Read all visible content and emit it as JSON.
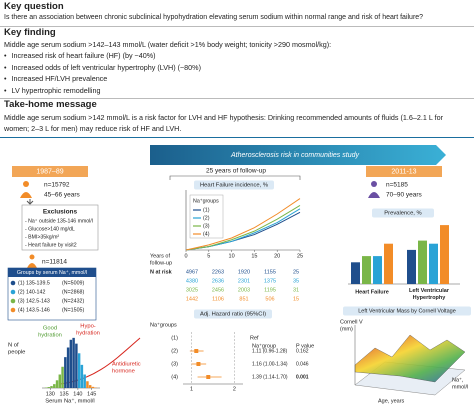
{
  "key_question": {
    "heading": "Key question",
    "text": "Is there an association between chronic subclinical hypohydration elevating serum sodium within normal range and risk of heart failure?"
  },
  "key_finding": {
    "heading": "Key finding",
    "intro": "Middle age serum sodium >142–143 mmol/L (water deficit >1% body weight; tonicity >290 mosmol/kg):",
    "bullets": [
      "Increased risk of heart failure (HF) (by ~40%)",
      "Increased odds of left ventricular hypertrophy (LVH) (~80%)",
      "Increased HF/LVH prevalence",
      "LV hypertrophic remodelling"
    ]
  },
  "take_home": {
    "heading": "Take-home message",
    "text": "Middle age serum sodium >142 mmol/L is a risk factor for LVH and HF hypothesis: Drinking recommended amounts of fluids (1.6–2.1 L for women; 2–3 L for men) may reduce risk of HF and LVH."
  },
  "banner": "Atherosclerosis risk in communities study",
  "baseline": {
    "period": "1987–89",
    "n": "n=15792",
    "age": "45–66 years",
    "exclusions_title": "Exclusions",
    "exclusions": [
      "- Na⁺ outside 135-146 mmol/l",
      "- Glucose>140 mg/dL",
      "- BMI>35kg/m²",
      "- Heart failure by visit2"
    ],
    "n_final": "n=11814"
  },
  "groups": {
    "title": "Groups by serum Na⁺, mmol/l",
    "rows": [
      {
        "label": "(1) 135-139.5",
        "n": "(N=5009)",
        "color": "#1f4e8c"
      },
      {
        "label": "(2) 140-142",
        "n": "(N=2868)",
        "color": "#29a3d6"
      },
      {
        "label": "(3) 142.5-143",
        "n": "(N=2432)",
        "color": "#7ab648"
      },
      {
        "label": "(4) 143.5-146",
        "n": "(N=1505)",
        "color": "#f28c28"
      }
    ]
  },
  "histogram": {
    "type": "histogram",
    "y_label": [
      "N of",
      "people"
    ],
    "x_label": "Serum Na⁺, mmol/l",
    "bins": [
      128,
      129,
      130,
      131,
      132,
      133,
      134,
      135,
      136,
      137,
      138,
      139,
      140,
      141,
      142,
      143,
      144,
      145,
      146,
      147
    ],
    "counts": [
      2,
      5,
      10,
      20,
      40,
      70,
      110,
      160,
      210,
      250,
      260,
      230,
      180,
      120,
      70,
      35,
      15,
      6,
      2
    ],
    "colors": [
      "#7ab648",
      "#7ab648",
      "#7ab648",
      "#7ab648",
      "#7ab648",
      "#7ab648",
      "#7ab648",
      "#1f4e8c",
      "#1f4e8c",
      "#1f4e8c",
      "#1f4e8c",
      "#1f4e8c",
      "#29a3d6",
      "#29a3d6",
      "#29a3d6",
      "#f28c28",
      "#f28c28",
      "#f28c28",
      "#f28c28"
    ],
    "xlim": [
      127,
      148
    ],
    "xticks": [
      130,
      135,
      140,
      145
    ],
    "ylim": [
      0,
      280
    ],
    "annotations": {
      "good": [
        "Good",
        "hydration"
      ],
      "hypo": [
        "Hypo-",
        "hydration"
      ],
      "adh": [
        "Antidiuretic",
        "hormone"
      ]
    }
  },
  "followup": "25 years of follow-up",
  "incidence": {
    "type": "line",
    "title": "Heart Failure incidence, %",
    "legend_title": "Na⁺groups",
    "x_label": [
      "Years of",
      "follow-up"
    ],
    "x": [
      0,
      5,
      10,
      15,
      20,
      25
    ],
    "xlim": [
      0,
      25
    ],
    "xticks": [
      0,
      5,
      10,
      15,
      20,
      25
    ],
    "ylim": [
      0,
      35
    ],
    "series": [
      {
        "name": "(1)",
        "color": "#1f4e8c",
        "values": [
          0,
          2,
          5,
          9,
          15,
          22
        ]
      },
      {
        "name": "(2)",
        "color": "#29a3d6",
        "values": [
          0,
          2,
          5,
          10,
          16,
          24
        ]
      },
      {
        "name": "(3)",
        "color": "#7ab648",
        "values": [
          0,
          2,
          6,
          11,
          18,
          26
        ]
      },
      {
        "name": "(4)",
        "color": "#f28c28",
        "values": [
          0,
          3,
          7,
          13,
          21,
          30
        ]
      }
    ]
  },
  "n_at_risk": {
    "label": "N at risk",
    "rows": [
      [
        4967,
        2263,
        1920,
        1155,
        25
      ],
      [
        4380,
        2636,
        2301,
        1375,
        35
      ],
      [
        3025,
        2456,
        2003,
        1195,
        31
      ],
      [
        1442,
        1106,
        851,
        506,
        15
      ]
    ]
  },
  "forest": {
    "title": "Adj. Hazard ratio (95%CI)",
    "group_header": "Na⁺groups",
    "ref": "Ref",
    "col_header": "Na⁺group",
    "p_header": "P value",
    "xlim": [
      0.8,
      2.2
    ],
    "xticks": [
      1,
      2
    ],
    "rows": [
      {
        "label": "(1)"
      },
      {
        "label": "(2)",
        "hr": 1.11,
        "lo": 0.96,
        "hi": 1.28,
        "text": "1.11 (0.96-1.28)",
        "p": "0.162"
      },
      {
        "label": "(3)",
        "hr": 1.16,
        "lo": 1.0,
        "hi": 1.34,
        "text": "1.16 (1.00-1.34)",
        "p": "0.046"
      },
      {
        "label": "(4)",
        "hr": 1.39,
        "lo": 1.14,
        "hi": 1.7,
        "text": "1.39 (1.14-1.70)",
        "p": "0.001"
      }
    ]
  },
  "visit5": {
    "period": "2011-13",
    "n": "n=5185",
    "age": "70–90 years"
  },
  "prevalence": {
    "type": "bar",
    "title": "Prevalence, %",
    "categories": [
      "Heart Failure",
      "Left Ventricular Hypertrophy"
    ],
    "ylim": [
      0,
      20
    ],
    "series": [
      {
        "color": "#1f4e8c",
        "values": [
          7,
          11
        ]
      },
      {
        "color": "#7ab648",
        "values": [
          9,
          14
        ]
      },
      {
        "color": "#29a3d6",
        "values": [
          9,
          13
        ]
      },
      {
        "color": "#f28c28",
        "values": [
          13,
          19
        ]
      }
    ]
  },
  "lv_mass": {
    "title": "Left Ventricular Mass by Cornell Voltage",
    "z_label": [
      "Cornell V",
      "(mm)"
    ],
    "x_label": "Age, years",
    "y_label": [
      "Na⁺,",
      "mmol/l"
    ]
  }
}
